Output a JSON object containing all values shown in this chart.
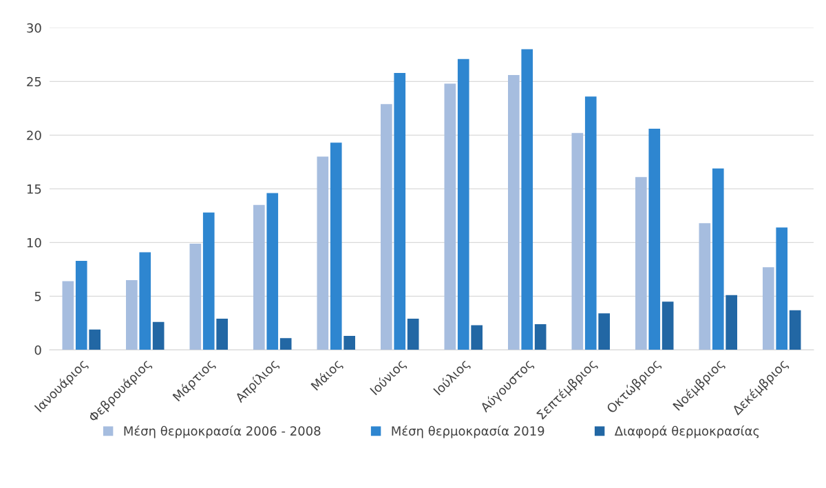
{
  "chart_data": {
    "type": "bar",
    "categories": [
      "Ιανουάριος",
      "Φεβρουάριος",
      "Μάρτιος",
      "Απρίλιος",
      "Μάιος",
      "Ιούνιος",
      "Ιούλιος",
      "Αύγουστος",
      "Σεπτέμβριος",
      "Οκτώβριος",
      "Νοέμβριος",
      "Δεκέμβριος"
    ],
    "series": [
      {
        "name": "Μέση θερμοκρασία 2006 - 2008",
        "color": "#a6bddf",
        "values": [
          6.4,
          6.5,
          9.9,
          13.5,
          18.0,
          22.9,
          24.8,
          25.6,
          20.2,
          16.1,
          11.8,
          7.7
        ]
      },
      {
        "name": "Μέση θερμοκρασία 2019",
        "color": "#2e86d0",
        "values": [
          8.3,
          9.1,
          12.8,
          14.6,
          19.3,
          25.8,
          27.1,
          28.0,
          23.6,
          20.6,
          16.9,
          11.4
        ]
      },
      {
        "name": "Διαφορά θερμοκρασίας",
        "color": "#2267a4",
        "values": [
          1.9,
          2.6,
          2.9,
          1.1,
          1.3,
          2.9,
          2.3,
          2.4,
          3.4,
          4.5,
          5.1,
          3.7
        ]
      }
    ],
    "ylim": [
      0,
      30
    ],
    "yticks": [
      0,
      5,
      10,
      15,
      20,
      25,
      30
    ],
    "grid": "y",
    "legend": "bottom"
  }
}
